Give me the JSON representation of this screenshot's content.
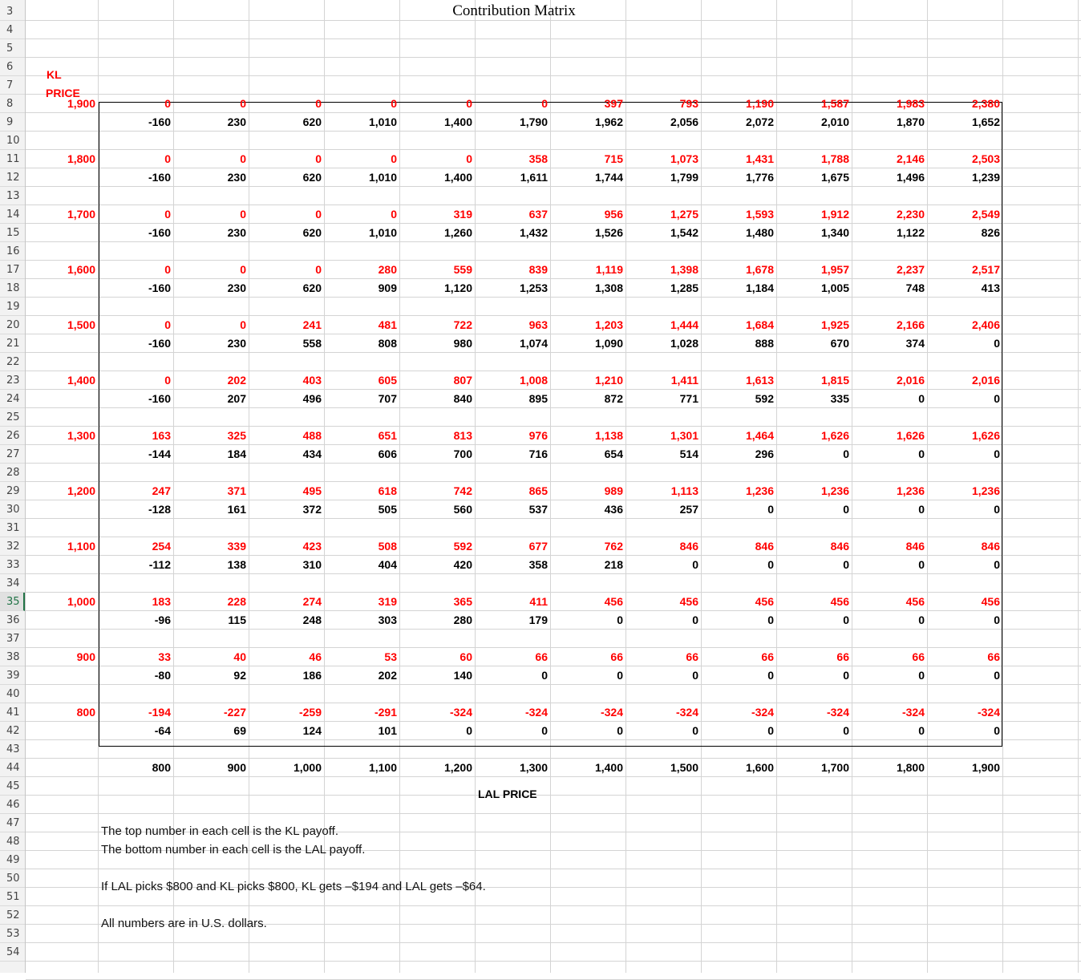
{
  "title": "Contribution Matrix",
  "kl_label_1": "KL",
  "kl_label_2": "PRICE",
  "lal_price_label": "LAL PRICE",
  "row_numbers": [
    "3",
    "4",
    "5",
    "6",
    "7",
    "8",
    "9",
    "10",
    "11",
    "12",
    "13",
    "14",
    "15",
    "16",
    "17",
    "18",
    "19",
    "20",
    "21",
    "22",
    "23",
    "24",
    "25",
    "26",
    "27",
    "28",
    "29",
    "30",
    "31",
    "32",
    "33",
    "34",
    "35",
    "36",
    "37",
    "38",
    "39",
    "40",
    "41",
    "42",
    "43",
    "44",
    "45",
    "46",
    "47",
    "48",
    "49",
    "50",
    "51",
    "52",
    "53",
    "54"
  ],
  "active_row": "35",
  "lal_prices": [
    "800",
    "900",
    "1,000",
    "1,100",
    "1,200",
    "1,300",
    "1,400",
    "1,500",
    "1,600",
    "1,700",
    "1,800",
    "1,900"
  ],
  "matrix": [
    {
      "kl_price": "1,900",
      "kl": [
        "0",
        "0",
        "0",
        "0",
        "0",
        "0",
        "397",
        "793",
        "1,190",
        "1,587",
        "1,983",
        "2,380"
      ],
      "lal": [
        "-160",
        "230",
        "620",
        "1,010",
        "1,400",
        "1,790",
        "1,962",
        "2,056",
        "2,072",
        "2,010",
        "1,870",
        "1,652"
      ]
    },
    {
      "kl_price": "1,800",
      "kl": [
        "0",
        "0",
        "0",
        "0",
        "0",
        "358",
        "715",
        "1,073",
        "1,431",
        "1,788",
        "2,146",
        "2,503"
      ],
      "lal": [
        "-160",
        "230",
        "620",
        "1,010",
        "1,400",
        "1,611",
        "1,744",
        "1,799",
        "1,776",
        "1,675",
        "1,496",
        "1,239"
      ]
    },
    {
      "kl_price": "1,700",
      "kl": [
        "0",
        "0",
        "0",
        "0",
        "319",
        "637",
        "956",
        "1,275",
        "1,593",
        "1,912",
        "2,230",
        "2,549"
      ],
      "lal": [
        "-160",
        "230",
        "620",
        "1,010",
        "1,260",
        "1,432",
        "1,526",
        "1,542",
        "1,480",
        "1,340",
        "1,122",
        "826"
      ]
    },
    {
      "kl_price": "1,600",
      "kl": [
        "0",
        "0",
        "0",
        "280",
        "559",
        "839",
        "1,119",
        "1,398",
        "1,678",
        "1,957",
        "2,237",
        "2,517"
      ],
      "lal": [
        "-160",
        "230",
        "620",
        "909",
        "1,120",
        "1,253",
        "1,308",
        "1,285",
        "1,184",
        "1,005",
        "748",
        "413"
      ]
    },
    {
      "kl_price": "1,500",
      "kl": [
        "0",
        "0",
        "241",
        "481",
        "722",
        "963",
        "1,203",
        "1,444",
        "1,684",
        "1,925",
        "2,166",
        "2,406"
      ],
      "lal": [
        "-160",
        "230",
        "558",
        "808",
        "980",
        "1,074",
        "1,090",
        "1,028",
        "888",
        "670",
        "374",
        "0"
      ]
    },
    {
      "kl_price": "1,400",
      "kl": [
        "0",
        "202",
        "403",
        "605",
        "807",
        "1,008",
        "1,210",
        "1,411",
        "1,613",
        "1,815",
        "2,016",
        "2,016"
      ],
      "lal": [
        "-160",
        "207",
        "496",
        "707",
        "840",
        "895",
        "872",
        "771",
        "592",
        "335",
        "0",
        "0"
      ]
    },
    {
      "kl_price": "1,300",
      "kl": [
        "163",
        "325",
        "488",
        "651",
        "813",
        "976",
        "1,138",
        "1,301",
        "1,464",
        "1,626",
        "1,626",
        "1,626"
      ],
      "lal": [
        "-144",
        "184",
        "434",
        "606",
        "700",
        "716",
        "654",
        "514",
        "296",
        "0",
        "0",
        "0"
      ]
    },
    {
      "kl_price": "1,200",
      "kl": [
        "247",
        "371",
        "495",
        "618",
        "742",
        "865",
        "989",
        "1,113",
        "1,236",
        "1,236",
        "1,236",
        "1,236"
      ],
      "lal": [
        "-128",
        "161",
        "372",
        "505",
        "560",
        "537",
        "436",
        "257",
        "0",
        "0",
        "0",
        "0"
      ]
    },
    {
      "kl_price": "1,100",
      "kl": [
        "254",
        "339",
        "423",
        "508",
        "592",
        "677",
        "762",
        "846",
        "846",
        "846",
        "846",
        "846"
      ],
      "lal": [
        "-112",
        "138",
        "310",
        "404",
        "420",
        "358",
        "218",
        "0",
        "0",
        "0",
        "0",
        "0"
      ]
    },
    {
      "kl_price": "1,000",
      "kl": [
        "183",
        "228",
        "274",
        "319",
        "365",
        "411",
        "456",
        "456",
        "456",
        "456",
        "456",
        "456"
      ],
      "lal": [
        "-96",
        "115",
        "248",
        "303",
        "280",
        "179",
        "0",
        "0",
        "0",
        "0",
        "0",
        "0"
      ]
    },
    {
      "kl_price": "900",
      "kl": [
        "33",
        "40",
        "46",
        "53",
        "60",
        "66",
        "66",
        "66",
        "66",
        "66",
        "66",
        "66"
      ],
      "lal": [
        "-80",
        "92",
        "186",
        "202",
        "140",
        "0",
        "0",
        "0",
        "0",
        "0",
        "0",
        "0"
      ]
    },
    {
      "kl_price": "800",
      "kl": [
        "-194",
        "-227",
        "-259",
        "-291",
        "-324",
        "-324",
        "-324",
        "-324",
        "-324",
        "-324",
        "-324",
        "-324"
      ],
      "lal": [
        "-64",
        "69",
        "124",
        "101",
        "0",
        "0",
        "0",
        "0",
        "0",
        "0",
        "0",
        "0"
      ]
    }
  ],
  "notes": [
    "The top number in each cell is the KL payoff.",
    "The bottom number in each cell is the LAL payoff.",
    "If LAL picks $800 and KL picks $800, KL gets –$194 and LAL gets –$64.",
    "All numbers are in U.S. dollars."
  ],
  "colors": {
    "kl_payoff": "#ff0000",
    "lal_payoff": "#000000",
    "active_row": "#217346"
  }
}
